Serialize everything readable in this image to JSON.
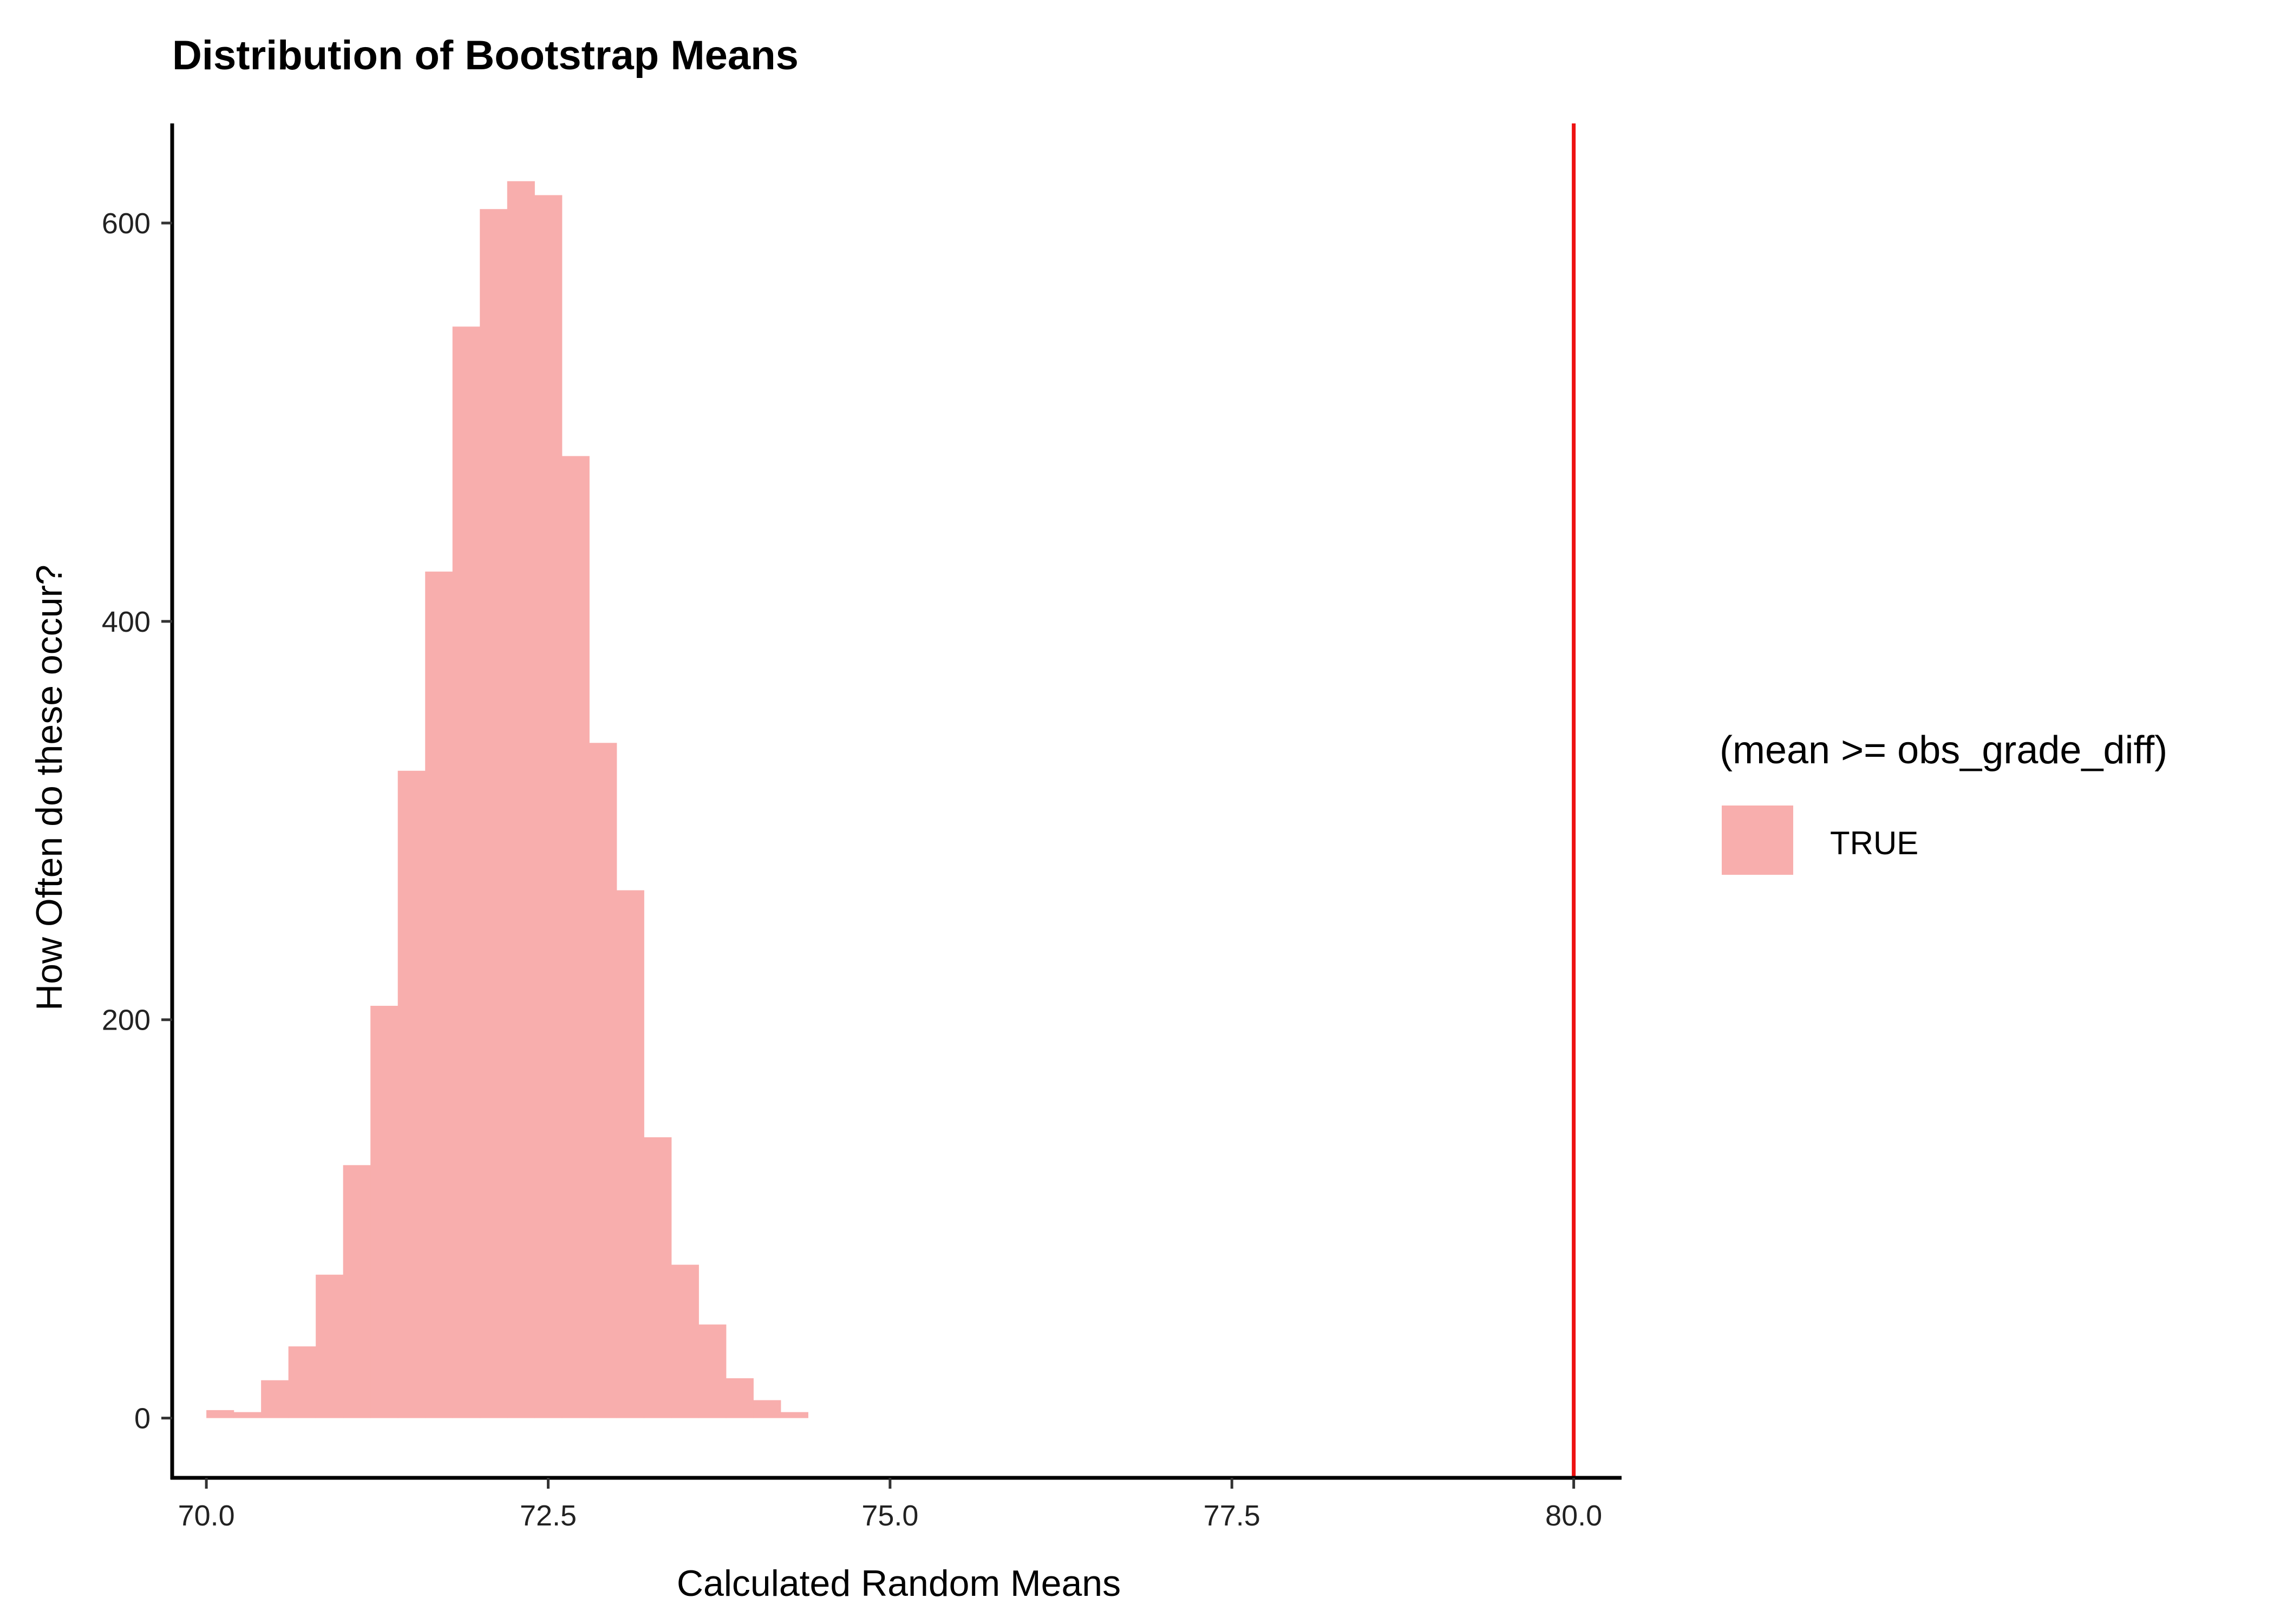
{
  "chart_data": {
    "type": "histogram",
    "title": "Distribution of Bootstrap Means",
    "xlabel": "Calculated Random Means",
    "ylabel": "How Often do these occur?",
    "xlim": [
      69.75,
      80.35
    ],
    "ylim": [
      -30,
      650
    ],
    "xticks": [
      70.0,
      72.5,
      75.0,
      77.5,
      80.0
    ],
    "xtick_labels": [
      "70.0",
      "72.5",
      "75.0",
      "77.5",
      "80.0"
    ],
    "yticks": [
      0,
      200,
      400,
      600
    ],
    "ytick_labels": [
      "0",
      "200",
      "400",
      "600"
    ],
    "bin_width": 0.2,
    "bins": [
      {
        "start": 70.0,
        "count": 4
      },
      {
        "start": 70.2,
        "count": 3
      },
      {
        "start": 70.4,
        "count": 19
      },
      {
        "start": 70.6,
        "count": 36
      },
      {
        "start": 70.8,
        "count": 72
      },
      {
        "start": 71.0,
        "count": 127
      },
      {
        "start": 71.2,
        "count": 207
      },
      {
        "start": 71.4,
        "count": 325
      },
      {
        "start": 71.6,
        "count": 425
      },
      {
        "start": 71.8,
        "count": 548
      },
      {
        "start": 72.0,
        "count": 607
      },
      {
        "start": 72.2,
        "count": 621
      },
      {
        "start": 72.4,
        "count": 614
      },
      {
        "start": 72.6,
        "count": 483
      },
      {
        "start": 72.8,
        "count": 339
      },
      {
        "start": 73.0,
        "count": 265
      },
      {
        "start": 73.2,
        "count": 141
      },
      {
        "start": 73.4,
        "count": 77
      },
      {
        "start": 73.6,
        "count": 47
      },
      {
        "start": 73.8,
        "count": 20
      },
      {
        "start": 74.0,
        "count": 9
      },
      {
        "start": 74.2,
        "count": 3
      }
    ],
    "bar_color": "#F8AEAD",
    "reference_line": {
      "x": 80.0,
      "color": "#EE1111"
    },
    "grid": false,
    "legend": {
      "title": "(mean >= obs_grade_diff)",
      "placement": "right",
      "entries": [
        {
          "label": "TRUE",
          "color": "#F8AEAD"
        }
      ]
    }
  }
}
